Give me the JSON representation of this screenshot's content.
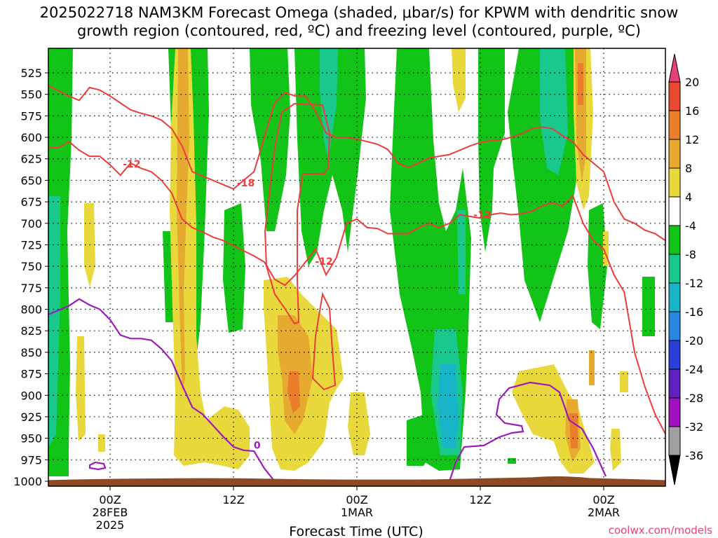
{
  "chart_data": {
    "type": "heatmap",
    "title_lines": [
      "2025022718 NAM3KM Forecast Omega (shaded, μbar/s) for KPWM with dendritic snow",
      "growth region (contoured, red, ºC) and freezing level (contoured, purple, ºC)"
    ],
    "xlabel": "Forecast Time (UTC)",
    "x_ticks": [
      {
        "label": "00Z",
        "sub": [
          "28FEB",
          "2025"
        ],
        "hour": 6
      },
      {
        "label": "12Z",
        "sub": [],
        "hour": 18
      },
      {
        "label": "00Z",
        "sub": [
          "1MAR"
        ],
        "hour": 30
      },
      {
        "label": "12Z",
        "sub": [],
        "hour": 42
      },
      {
        "label": "00Z",
        "sub": [
          "2MAR"
        ],
        "hour": 54
      }
    ],
    "xlim": [
      0,
      60
    ],
    "y_ticks": [
      "525",
      "550",
      "575",
      "600",
      "625",
      "650",
      "675",
      "700",
      "725",
      "750",
      "775",
      "800",
      "825",
      "850",
      "875",
      "900",
      "925",
      "950",
      "975",
      "1000"
    ],
    "ylim_hpa": [
      500,
      1005
    ],
    "colorbar": {
      "labels": [
        "20",
        "16",
        "12",
        "8",
        "4",
        "-4",
        "-8",
        "-12",
        "-16",
        "-20",
        "-24",
        "-28",
        "-32",
        "-36"
      ],
      "colors": [
        "#e8407a",
        "#e84a30",
        "#ec7d2a",
        "#e6aa30",
        "#e8d83c",
        "#ffffff",
        "#11c417",
        "#19c88c",
        "#1ab4c8",
        "#2a84e0",
        "#2a40d8",
        "#6020c0",
        "#a010c0",
        "#a0a0a0",
        "#000000"
      ]
    },
    "contour_labels": [
      {
        "text": "-12",
        "color": "#ee3b3b",
        "hour": 8.1,
        "hpa": 631
      },
      {
        "text": "-18",
        "color": "#ee3b3b",
        "hour": 19.2,
        "hpa": 653
      },
      {
        "text": "-12",
        "color": "#ee3b3b",
        "hour": 26.8,
        "hpa": 744
      },
      {
        "text": "-12",
        "color": "#ee3b3b",
        "hour": 42.2,
        "hpa": 690
      },
      {
        "text": "0",
        "color": "#9b1cb8",
        "hour": 20.3,
        "hpa": 958
      }
    ],
    "red_contours_hpa": [
      {
        "label": "-12",
        "points": [
          [
            0,
            540
          ],
          [
            2,
            552
          ],
          [
            3,
            557
          ],
          [
            4,
            542
          ],
          [
            5,
            545
          ],
          [
            6,
            552
          ],
          [
            7,
            560
          ],
          [
            8,
            568
          ],
          [
            9,
            572
          ],
          [
            10,
            575
          ],
          [
            11,
            580
          ],
          [
            12,
            590
          ],
          [
            13,
            610
          ],
          [
            14,
            640
          ],
          [
            15,
            645
          ],
          [
            16,
            650
          ],
          [
            17,
            655
          ],
          [
            18,
            660
          ],
          [
            19,
            650
          ],
          [
            20,
            640
          ],
          [
            21,
            600
          ],
          [
            22,
            560
          ],
          [
            23,
            548
          ],
          [
            24,
            552
          ],
          [
            25,
            552
          ],
          [
            26,
            570
          ],
          [
            27,
            595
          ],
          [
            28,
            600
          ],
          [
            29,
            600
          ],
          [
            30,
            602
          ],
          [
            31,
            605
          ],
          [
            32,
            608
          ],
          [
            33,
            614
          ],
          [
            34,
            630
          ],
          [
            35,
            635
          ],
          [
            36,
            630
          ],
          [
            37,
            624
          ],
          [
            38,
            622
          ],
          [
            39,
            620
          ],
          [
            40,
            615
          ],
          [
            41,
            610
          ],
          [
            42,
            606
          ],
          [
            43,
            604
          ],
          [
            44,
            603
          ],
          [
            45,
            600
          ],
          [
            46,
            596
          ],
          [
            47,
            590
          ],
          [
            48,
            588
          ],
          [
            49,
            590
          ],
          [
            50,
            598
          ],
          [
            51,
            605
          ],
          [
            52,
            620
          ],
          [
            53,
            630
          ],
          [
            54,
            640
          ],
          [
            55,
            675
          ],
          [
            56,
            695
          ],
          [
            57,
            700
          ],
          [
            58,
            708
          ],
          [
            59,
            712
          ],
          [
            60,
            720
          ]
        ]
      },
      {
        "label": "-12",
        "points": [
          [
            0,
            612
          ],
          [
            1,
            612
          ],
          [
            2,
            605
          ],
          [
            3,
            615
          ],
          [
            4,
            622
          ],
          [
            5,
            622
          ],
          [
            6,
            632
          ],
          [
            7,
            644
          ],
          [
            8,
            630
          ],
          [
            9,
            636
          ],
          [
            10,
            640
          ],
          [
            11,
            650
          ],
          [
            12,
            665
          ],
          [
            13,
            695
          ],
          [
            14,
            705
          ],
          [
            15,
            710
          ],
          [
            16,
            716
          ],
          [
            17,
            720
          ],
          [
            18,
            726
          ],
          [
            19,
            732
          ],
          [
            20,
            738
          ],
          [
            21,
            745
          ],
          [
            22,
            765
          ],
          [
            23,
            772
          ],
          [
            24,
            760
          ],
          [
            25,
            745
          ],
          [
            26,
            730
          ],
          [
            27,
            760
          ],
          [
            28,
            740
          ],
          [
            29,
            700
          ],
          [
            30,
            695
          ],
          [
            31,
            705
          ],
          [
            32,
            706
          ],
          [
            33,
            712
          ],
          [
            34,
            712
          ],
          [
            35,
            712
          ],
          [
            36,
            705
          ],
          [
            37,
            700
          ],
          [
            38,
            705
          ],
          [
            39,
            700
          ],
          [
            40,
            690
          ],
          [
            41,
            692
          ],
          [
            42,
            694
          ],
          [
            43,
            690
          ],
          [
            44,
            688
          ],
          [
            45,
            690
          ],
          [
            46,
            689
          ],
          [
            47,
            686
          ],
          [
            48,
            680
          ],
          [
            49,
            676
          ],
          [
            50,
            680
          ],
          [
            51,
            668
          ],
          [
            52,
            700
          ],
          [
            53,
            720
          ],
          [
            54,
            730
          ],
          [
            55,
            760
          ],
          [
            56,
            780
          ],
          [
            57,
            850
          ],
          [
            58,
            890
          ],
          [
            59,
            922
          ],
          [
            60,
            945
          ]
        ]
      }
    ],
    "purple_contour_hpa": [
      [
        0,
        806
      ],
      [
        2,
        796
      ],
      [
        3,
        788
      ],
      [
        4,
        795
      ],
      [
        5,
        800
      ],
      [
        6,
        812
      ],
      [
        7,
        830
      ],
      [
        8,
        834
      ],
      [
        9,
        834
      ],
      [
        10,
        836
      ],
      [
        11,
        846
      ],
      [
        12,
        860
      ],
      [
        13,
        888
      ],
      [
        14,
        914
      ],
      [
        15,
        922
      ],
      [
        16,
        935
      ],
      [
        17,
        948
      ],
      [
        18,
        960
      ],
      [
        19,
        964
      ],
      [
        20,
        965
      ],
      [
        21,
        985
      ],
      [
        22,
        1000
      ]
    ],
    "ground": {
      "color": "#8b4a23",
      "top_hpa": 997
    }
  },
  "credit": "coolwx.com/models"
}
